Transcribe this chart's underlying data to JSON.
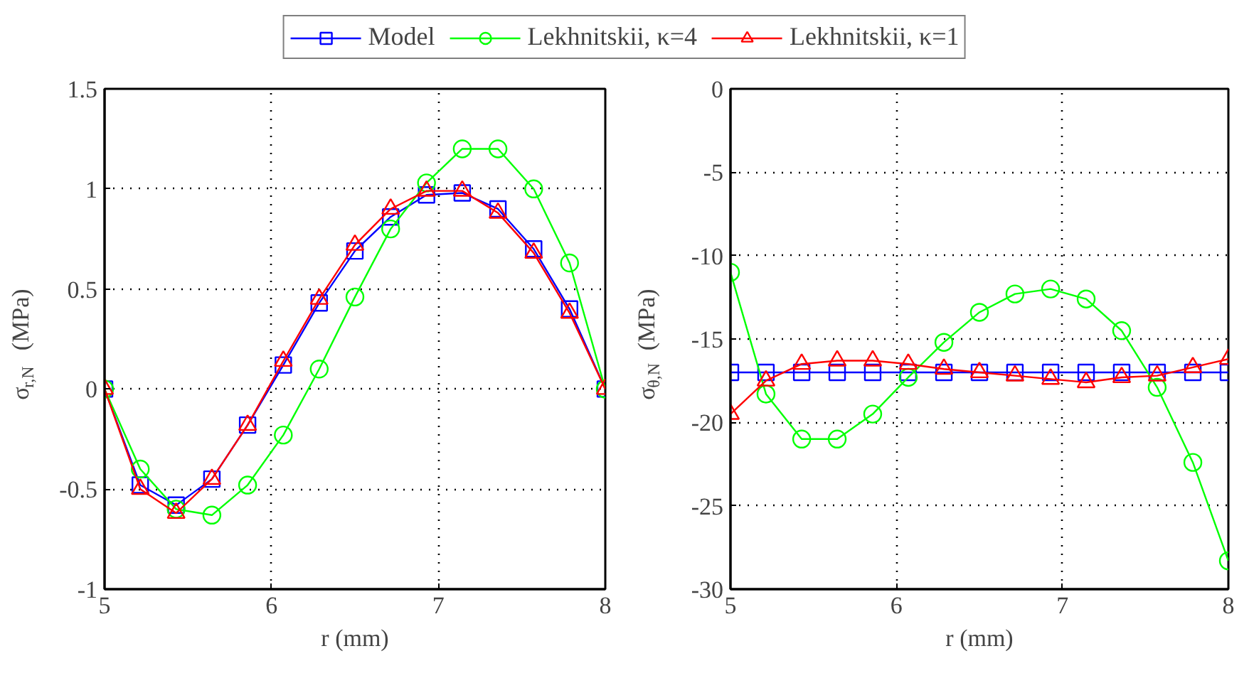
{
  "chart_data": [
    {
      "type": "line",
      "xlabel": "r (mm)",
      "ylabel": "σ$_{r,N}$ (MPa)",
      "x": [
        5,
        5.214,
        5.429,
        5.643,
        5.857,
        6.071,
        6.286,
        6.5,
        6.714,
        6.929,
        7.143,
        7.357,
        7.571,
        7.786,
        8
      ],
      "xlim": [
        5,
        8
      ],
      "xticks": [
        5,
        6,
        7,
        8
      ],
      "ylim": [
        -1,
        1.5
      ],
      "yticks": [
        -1,
        -0.5,
        0,
        0.5,
        1,
        1.5
      ],
      "grid": true,
      "legend": "top",
      "series": [
        {
          "name": "Model",
          "color": "#0000ff",
          "marker": "square",
          "values": [
            0,
            -0.48,
            -0.58,
            -0.45,
            -0.18,
            0.12,
            0.43,
            0.69,
            0.86,
            0.97,
            0.98,
            0.9,
            0.7,
            0.4,
            0
          ]
        },
        {
          "name": "Lekhnitskii, κ=4",
          "color": "#00ff00",
          "marker": "circle",
          "values": [
            0,
            -0.4,
            -0.6,
            -0.63,
            -0.48,
            -0.23,
            0.1,
            0.46,
            0.8,
            1.03,
            1.2,
            1.2,
            1.0,
            0.63,
            0
          ]
        },
        {
          "name": "Lekhnitskii, κ=1",
          "color": "#ff0000",
          "marker": "triangle",
          "values": [
            0,
            -0.5,
            -0.62,
            -0.45,
            -0.18,
            0.14,
            0.45,
            0.72,
            0.9,
            0.99,
            0.99,
            0.88,
            0.68,
            0.38,
            0
          ]
        }
      ]
    },
    {
      "type": "line",
      "xlabel": "r (mm)",
      "ylabel": "σ$_{θ,N}$ (MPa)",
      "x": [
        5,
        5.214,
        5.429,
        5.643,
        5.857,
        6.071,
        6.286,
        6.5,
        6.714,
        6.929,
        7.143,
        7.357,
        7.571,
        7.786,
        8
      ],
      "xlim": [
        5,
        8
      ],
      "xticks": [
        5,
        6,
        7,
        8
      ],
      "ylim": [
        -30,
        0
      ],
      "yticks": [
        -30,
        -25,
        -20,
        -15,
        -10,
        -5,
        0
      ],
      "grid": true,
      "series": [
        {
          "color": "#0000ff",
          "marker": "square",
          "values": [
            -17,
            -17,
            -17,
            -17,
            -17,
            -17,
            -17,
            -17,
            -17,
            -17,
            -17,
            -17,
            -17,
            -17,
            -17
          ]
        },
        {
          "color": "#00ff00",
          "marker": "circle",
          "values": [
            -11,
            -18.3,
            -21,
            -21,
            -19.5,
            -17.3,
            -15.2,
            -13.4,
            -12.3,
            -12,
            -12.6,
            -14.5,
            -17.9,
            -22.4,
            -28.3
          ]
        },
        {
          "color": "#ff0000",
          "marker": "triangle",
          "values": [
            -19.5,
            -17.5,
            -16.5,
            -16.3,
            -16.3,
            -16.5,
            -16.8,
            -17,
            -17.2,
            -17.4,
            -17.6,
            -17.3,
            -17.2,
            -16.7,
            -16.2
          ]
        }
      ]
    }
  ]
}
